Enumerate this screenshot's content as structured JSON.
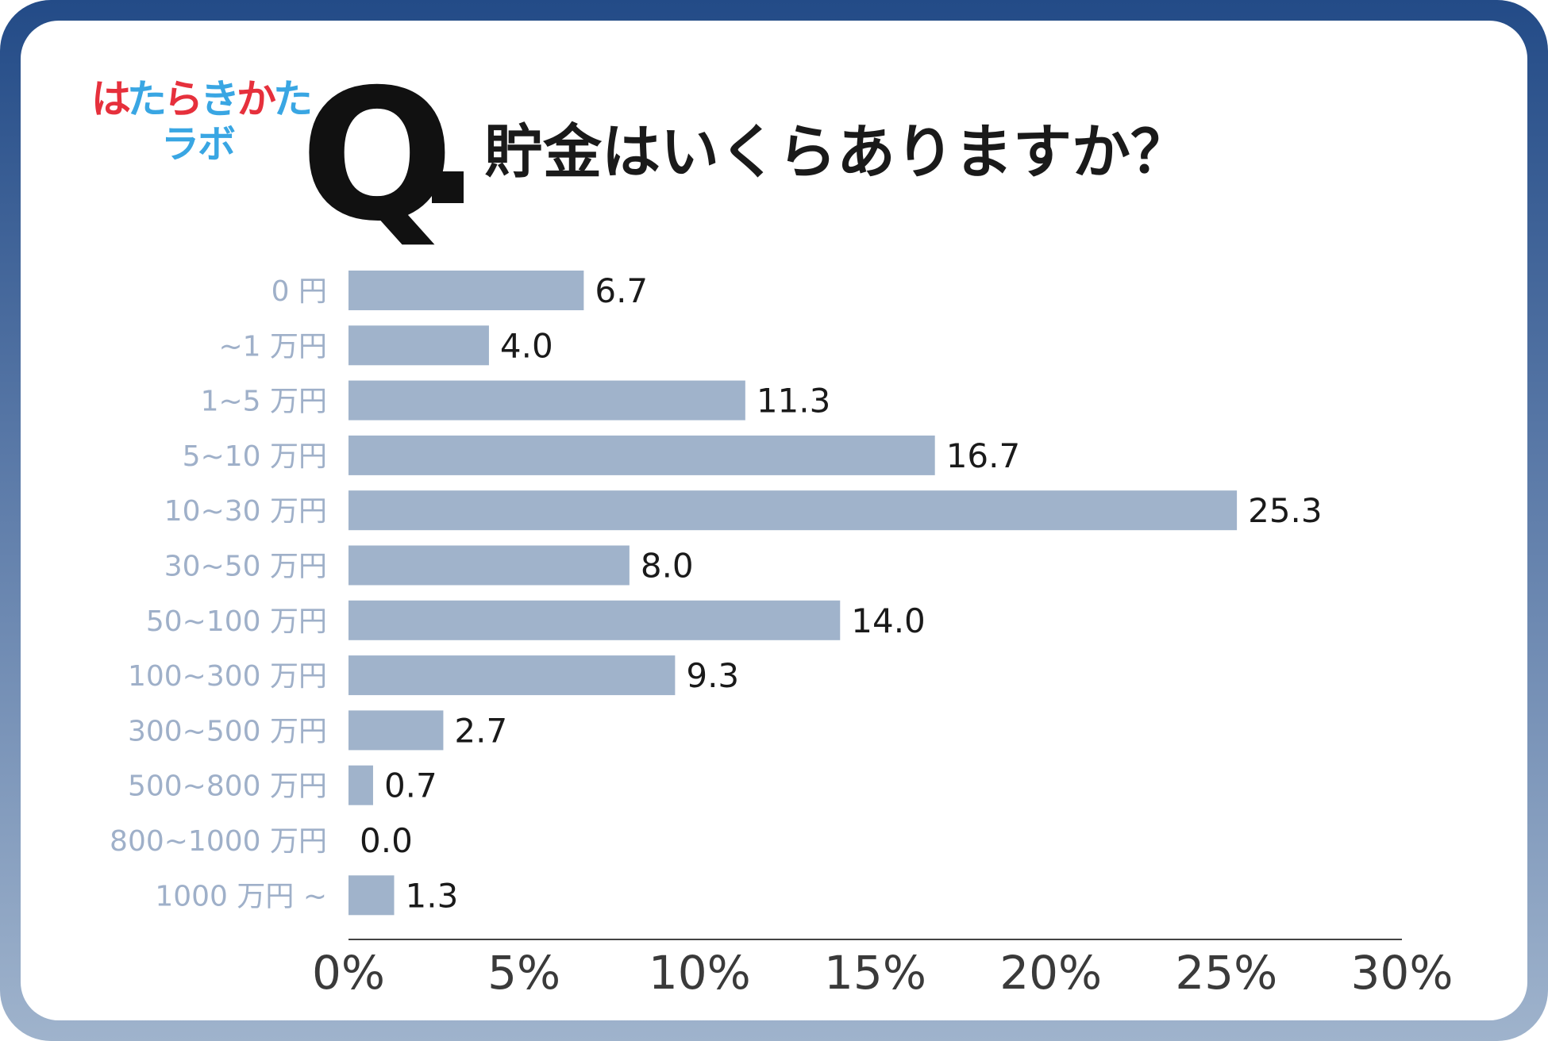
{
  "logo": {
    "text_line1_parts": [
      {
        "text": "は",
        "color": "#e6303c"
      },
      {
        "text": "た",
        "color": "#39a6e3"
      },
      {
        "text": "ら",
        "color": "#e6303c"
      },
      {
        "text": "き",
        "color": "#39a6e3"
      },
      {
        "text": "か",
        "color": "#e6303c"
      },
      {
        "text": "た",
        "color": "#39a6e3"
      }
    ],
    "text_line2": "ラボ"
  },
  "heading": {
    "q_mark": "Q",
    "title": "貯金はいくらありますか？"
  },
  "colors": {
    "bar": "#a0b3cb",
    "frame_top": "#234b87",
    "frame_bottom": "#9fb3cc"
  },
  "chart_data": {
    "type": "bar",
    "orientation": "horizontal",
    "categories": [
      "0 円",
      "~1 万円",
      "1~5 万円",
      "5~10 万円",
      "10~30 万円",
      "30~50 万円",
      "50~100 万円",
      "100~300 万円",
      "300~500 万円",
      "500~800 万円",
      "800~1000 万円",
      "1000 万円 ~"
    ],
    "values": [
      6.7,
      4.0,
      11.3,
      16.7,
      25.3,
      8.0,
      14.0,
      9.3,
      2.7,
      0.7,
      0.0,
      1.3
    ],
    "value_labels": [
      "6.7",
      "4.0",
      "11.3",
      "16.7",
      "25.3",
      "8.0",
      "14.0",
      "9.3",
      "2.7",
      "0.7",
      "0.0",
      "1.3"
    ],
    "x_ticks": [
      "0%",
      "5%",
      "10%",
      "15%",
      "20%",
      "25%",
      "30%"
    ],
    "xlim": [
      0,
      30
    ],
    "grid": false,
    "legend": "none"
  }
}
